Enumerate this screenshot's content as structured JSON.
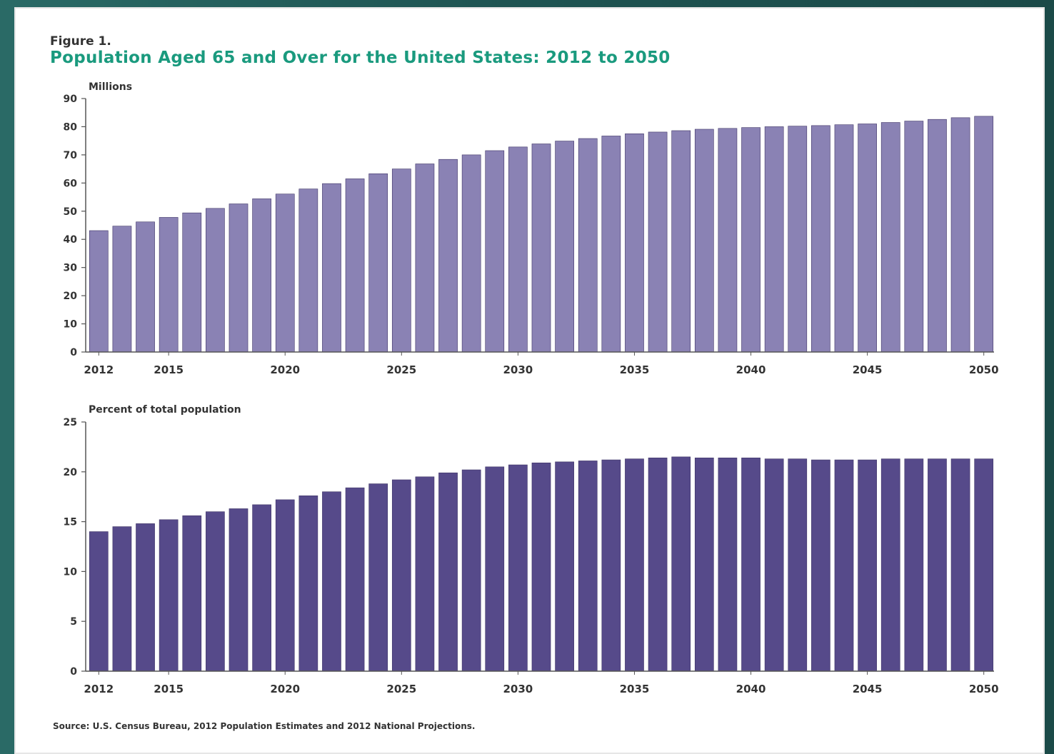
{
  "figure": {
    "label": "Figure 1.",
    "title": "Population Aged 65 and Over for the United States: 2012 to 2050",
    "source": "Source: U.S. Census Bureau, 2012 Population Estimates and 2012 National Projections."
  },
  "colors": {
    "top_bars": "#8a82b4",
    "bottom_bars": "#564a8a",
    "title": "#1a9a7e"
  },
  "chart_data": [
    {
      "type": "bar",
      "ylabel": "Millions",
      "ylim": [
        0,
        90
      ],
      "yticks": [
        0,
        10,
        20,
        30,
        40,
        50,
        60,
        70,
        80,
        90
      ],
      "xtick_labels": [
        "2012",
        "2015",
        "2020",
        "2025",
        "2030",
        "2035",
        "2040",
        "2045",
        "2050"
      ],
      "categories": [
        2012,
        2013,
        2014,
        2015,
        2016,
        2017,
        2018,
        2019,
        2020,
        2021,
        2022,
        2023,
        2024,
        2025,
        2026,
        2027,
        2028,
        2029,
        2030,
        2031,
        2032,
        2033,
        2034,
        2035,
        2036,
        2037,
        2038,
        2039,
        2040,
        2041,
        2042,
        2043,
        2044,
        2045,
        2046,
        2047,
        2048,
        2049,
        2050
      ],
      "values": [
        43.1,
        44.7,
        46.2,
        47.8,
        49.4,
        51.0,
        52.6,
        54.4,
        56.1,
        57.9,
        59.8,
        61.5,
        63.3,
        65.0,
        66.8,
        68.4,
        70.0,
        71.5,
        72.8,
        73.9,
        74.9,
        75.8,
        76.7,
        77.5,
        78.1,
        78.6,
        79.1,
        79.4,
        79.7,
        80.0,
        80.2,
        80.4,
        80.7,
        81.0,
        81.5,
        82.0,
        82.6,
        83.2,
        83.7
      ],
      "grid": false
    },
    {
      "type": "bar",
      "ylabel": "Percent of total population",
      "ylim": [
        0,
        25
      ],
      "yticks": [
        0,
        5,
        10,
        15,
        20,
        25
      ],
      "xtick_labels": [
        "2012",
        "2015",
        "2020",
        "2025",
        "2030",
        "2035",
        "2040",
        "2045",
        "2050"
      ],
      "categories": [
        2012,
        2013,
        2014,
        2015,
        2016,
        2017,
        2018,
        2019,
        2020,
        2021,
        2022,
        2023,
        2024,
        2025,
        2026,
        2027,
        2028,
        2029,
        2030,
        2031,
        2032,
        2033,
        2034,
        2035,
        2036,
        2037,
        2038,
        2039,
        2040,
        2041,
        2042,
        2043,
        2044,
        2045,
        2046,
        2047,
        2048,
        2049,
        2050
      ],
      "values": [
        14.0,
        14.5,
        14.8,
        15.2,
        15.6,
        16.0,
        16.3,
        16.7,
        17.2,
        17.6,
        18.0,
        18.4,
        18.8,
        19.2,
        19.5,
        19.9,
        20.2,
        20.5,
        20.7,
        20.9,
        21.0,
        21.1,
        21.2,
        21.3,
        21.4,
        21.5,
        21.4,
        21.4,
        21.4,
        21.3,
        21.3,
        21.2,
        21.2,
        21.2,
        21.3,
        21.3,
        21.3,
        21.3,
        21.3
      ],
      "grid": false
    }
  ]
}
